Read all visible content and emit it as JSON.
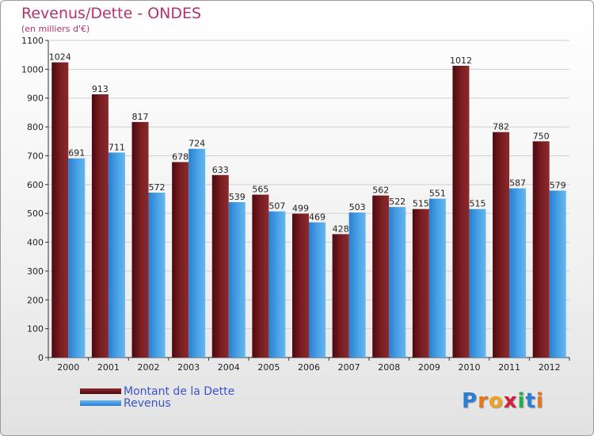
{
  "title": "Revenus/Dette - ONDES",
  "subtitle": "(en milliers d'€)",
  "legend": {
    "debt_label": "Montant de la Dette",
    "revenue_label": "Revenus"
  },
  "logo": {
    "letters": [
      "P",
      "r",
      "o",
      "x",
      "i",
      "t",
      "i"
    ],
    "colors": [
      "#2a7fd4",
      "#e6731e",
      "#f0a21a",
      "#d21f3c",
      "#2aa84a",
      "#2a7fd4",
      "#e6731e"
    ]
  },
  "colors": {
    "debt": "#7a1e22",
    "revenue": "#4aa3e6",
    "title": "#b5326b"
  },
  "chart_data": {
    "type": "bar",
    "title": "Revenus/Dette - ONDES",
    "ylabel": "(en milliers d'€)",
    "categories": [
      "2000",
      "2001",
      "2002",
      "2003",
      "2004",
      "2005",
      "2006",
      "2007",
      "2008",
      "2009",
      "2010",
      "2011",
      "2012"
    ],
    "series": [
      {
        "name": "Montant de la Dette",
        "values": [
          1024,
          913,
          817,
          678,
          633,
          565,
          499,
          428,
          562,
          515,
          1012,
          782,
          750
        ]
      },
      {
        "name": "Revenus",
        "values": [
          691,
          711,
          572,
          724,
          539,
          507,
          469,
          503,
          522,
          551,
          515,
          587,
          579
        ]
      }
    ],
    "ylim": [
      0,
      1100
    ],
    "yticks": [
      0,
      100,
      200,
      300,
      400,
      500,
      600,
      700,
      800,
      900,
      1000,
      1100
    ],
    "grid": true,
    "legend_position": "bottom-left"
  }
}
